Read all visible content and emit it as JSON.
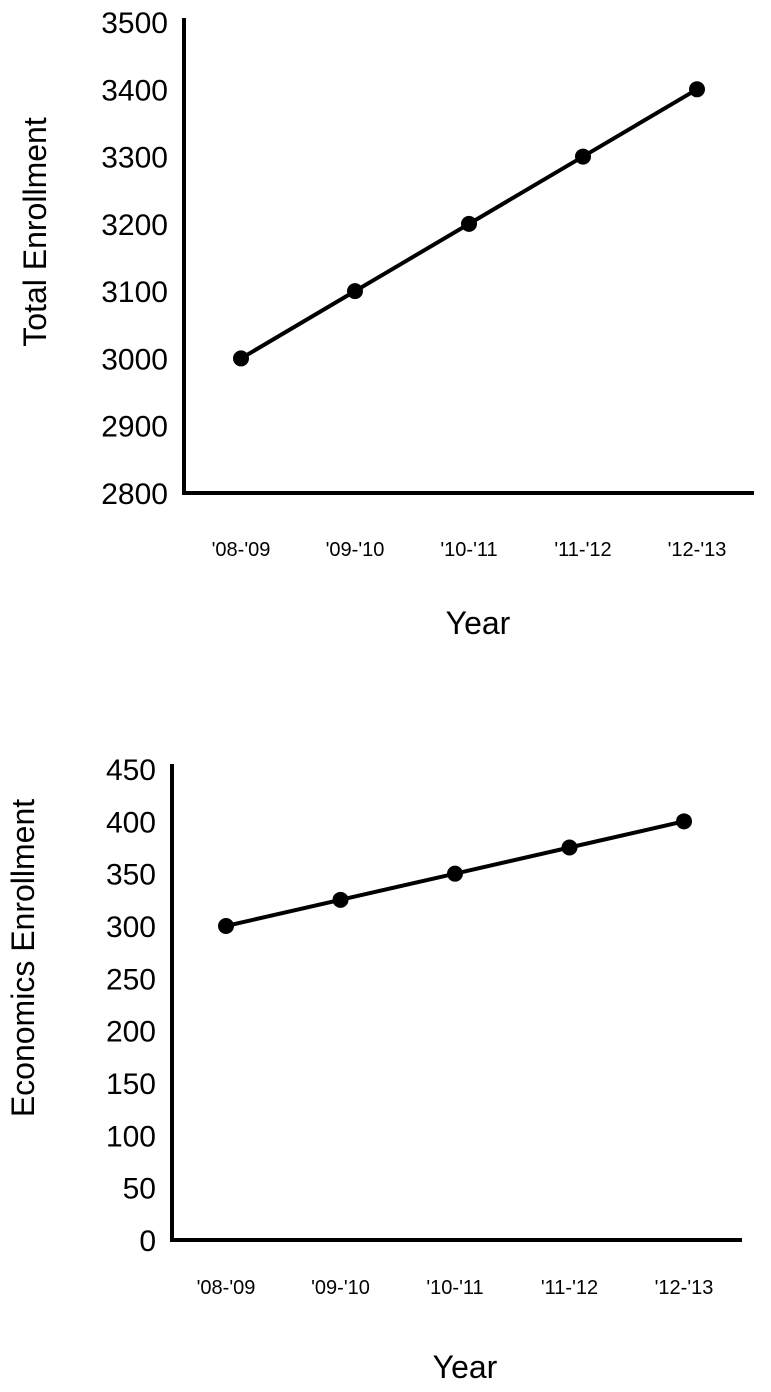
{
  "chart_data": [
    {
      "type": "line",
      "title": "",
      "xlabel": "Year",
      "ylabel": "Total Enrollment",
      "categories": [
        "'08-'09",
        "'09-'10",
        "'10-'11",
        "'11-'12",
        "'12-'13"
      ],
      "values": [
        3000,
        3100,
        3200,
        3300,
        3400
      ],
      "ylim": [
        2800,
        3500
      ],
      "yticks": [
        2800,
        2900,
        3000,
        3100,
        3200,
        3300,
        3400,
        3500
      ],
      "grid": false,
      "markers": true,
      "color": "#000000"
    },
    {
      "type": "line",
      "title": "",
      "xlabel": "Year",
      "ylabel": "Economics Enrollment",
      "categories": [
        "'08-'09",
        "'09-'10",
        "'10-'11",
        "'11-'12",
        "'12-'13"
      ],
      "values": [
        300,
        325,
        350,
        375,
        400
      ],
      "ylim": [
        0,
        450
      ],
      "yticks": [
        0,
        50,
        100,
        150,
        200,
        250,
        300,
        350,
        400,
        450
      ],
      "grid": false,
      "markers": true,
      "color": "#000000"
    }
  ]
}
